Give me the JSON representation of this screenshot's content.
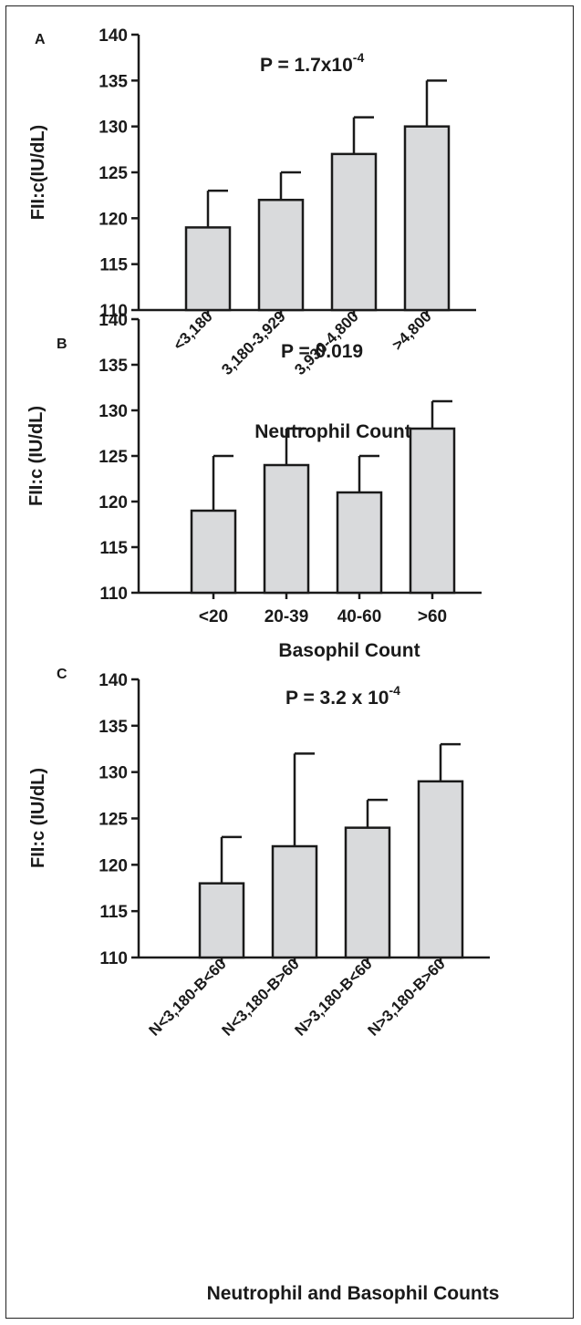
{
  "chart_data": [
    {
      "type": "bar",
      "panel": "A",
      "annotation": {
        "base": "P = 1.7x10",
        "exp": "-4"
      },
      "ylabel": "FII:c(IU/dL)",
      "xlabel": "Neutrophil Count",
      "ylim": [
        110,
        140
      ],
      "yticks": [
        110,
        115,
        120,
        125,
        130,
        135,
        140
      ],
      "categories": [
        "<3,180",
        "3,180-3,929",
        "3,930-4,800",
        ">4,800"
      ],
      "values": [
        119,
        122,
        127,
        130
      ],
      "error_upper": [
        123,
        125,
        131,
        135
      ],
      "bar_color": "#d9dadc",
      "rotated_labels": true
    },
    {
      "type": "bar",
      "panel": "B",
      "annotation": {
        "base": "P = 0.019",
        "exp": ""
      },
      "ylabel": "FII:c (IU/dL)",
      "xlabel": "Basophil Count",
      "ylim": [
        110,
        140
      ],
      "yticks": [
        110,
        115,
        120,
        125,
        130,
        135,
        140
      ],
      "categories": [
        "<20",
        "20-39",
        "40-60",
        ">60"
      ],
      "values": [
        119,
        124,
        121,
        128
      ],
      "error_upper": [
        125,
        128,
        125,
        131
      ],
      "bar_color": "#d9dadc",
      "rotated_labels": false
    },
    {
      "type": "bar",
      "panel": "C",
      "annotation": {
        "base": "P = 3.2 x 10",
        "exp": "-4"
      },
      "ylabel": "FII:c (IU/dL)",
      "xlabel": "Neutrophil and Basophil Counts",
      "ylim": [
        110,
        140
      ],
      "yticks": [
        110,
        115,
        120,
        125,
        130,
        135,
        140
      ],
      "categories": [
        "N<3,180-B<60",
        "N<3,180-B>60",
        "N>3,180-B<60",
        "N>3,180-B>60"
      ],
      "values": [
        118,
        122,
        124,
        129
      ],
      "error_upper": [
        123,
        132,
        127,
        133
      ],
      "bar_color": "#d9dadc",
      "rotated_labels": true
    }
  ]
}
